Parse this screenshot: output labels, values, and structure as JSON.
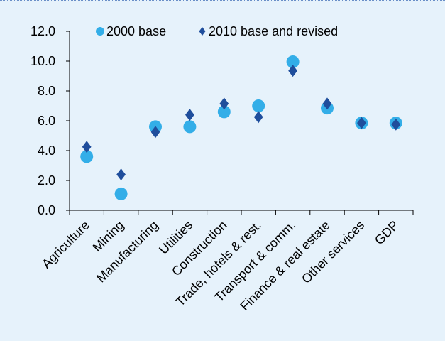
{
  "chart_data": {
    "type": "scatter",
    "title": "",
    "xlabel": "",
    "ylabel": "",
    "categories": [
      "Agriculture",
      "Mining",
      "Manufacturing",
      "Utilities",
      "Construction",
      "Trade, hotels & rest.",
      "Transport & comm.",
      "Finance & real estate",
      "Other services",
      "GDP"
    ],
    "ylim": [
      0,
      12
    ],
    "yticks": [
      "0.0",
      "2.0",
      "4.0",
      "6.0",
      "8.0",
      "10.0",
      "12.0"
    ],
    "grid": false,
    "legend_position": "top",
    "series": [
      {
        "name": "2000 base",
        "marker": "circle",
        "color": "#33aee8",
        "values": [
          3.6,
          1.1,
          5.6,
          5.6,
          6.6,
          7.0,
          9.95,
          6.85,
          5.85,
          5.85
        ]
      },
      {
        "name": "2010 base and revised",
        "marker": "diamond",
        "color": "#1f4e9c",
        "values": [
          4.25,
          2.4,
          5.25,
          6.4,
          7.15,
          6.25,
          9.35,
          7.15,
          5.85,
          5.75
        ]
      }
    ]
  }
}
